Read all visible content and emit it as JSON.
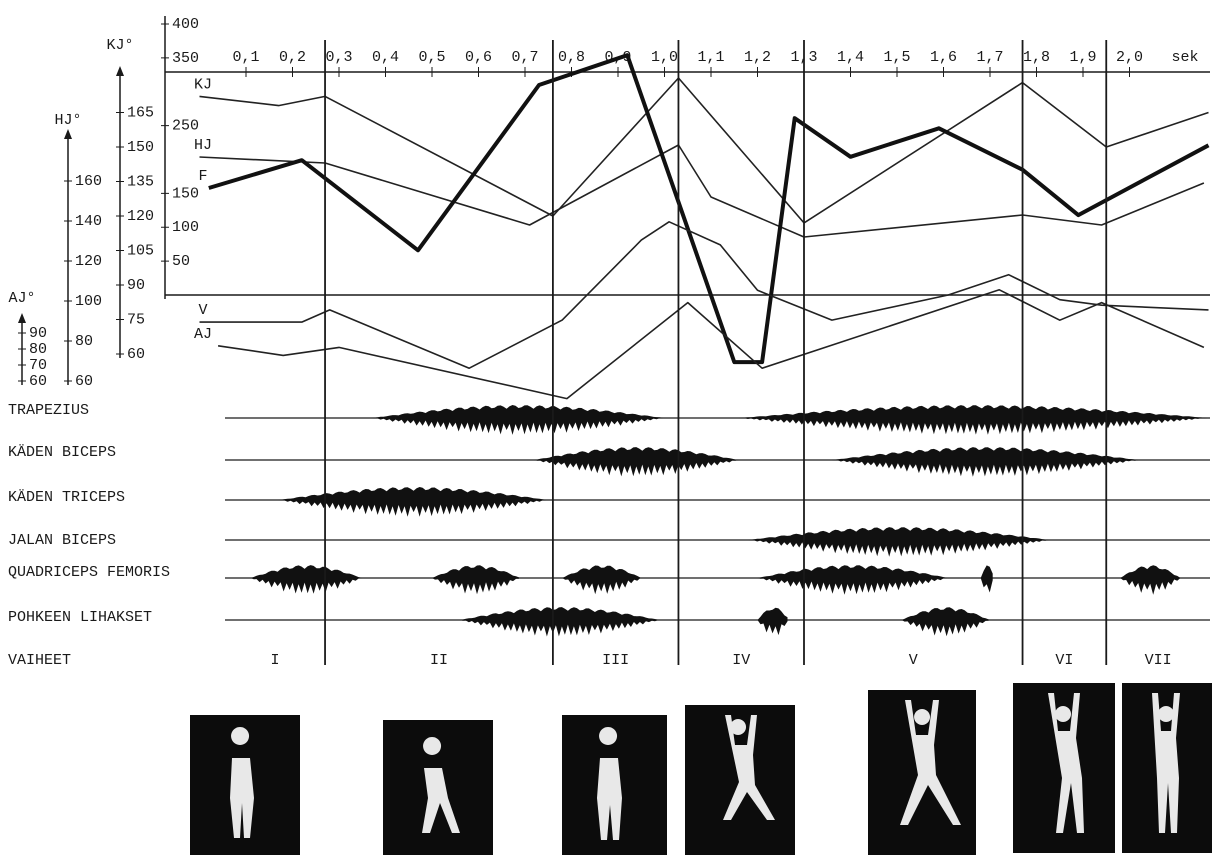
{
  "chart_data": {
    "type": "line",
    "x_unit": "sek",
    "xlim": [
      0,
      2.2
    ],
    "xticks": [
      {
        "value": 0.1,
        "label": "0,1"
      },
      {
        "value": 0.2,
        "label": "0,2"
      },
      {
        "value": 0.3,
        "label": "0,3"
      },
      {
        "value": 0.4,
        "label": "0,4"
      },
      {
        "value": 0.5,
        "label": "0,5"
      },
      {
        "value": 0.6,
        "label": "0,6"
      },
      {
        "value": 0.7,
        "label": "0,7"
      },
      {
        "value": 0.8,
        "label": "0,8"
      },
      {
        "value": 0.9,
        "label": "0,9"
      },
      {
        "value": 1.0,
        "label": "1,0"
      },
      {
        "value": 1.1,
        "label": "1,1"
      },
      {
        "value": 1.2,
        "label": "1,2"
      },
      {
        "value": 1.3,
        "label": "1,3"
      },
      {
        "value": 1.4,
        "label": "1,4"
      },
      {
        "value": 1.5,
        "label": "1,5"
      },
      {
        "value": 1.6,
        "label": "1,6"
      },
      {
        "value": 1.7,
        "label": "1,7"
      },
      {
        "value": 1.8,
        "label": "1,8"
      },
      {
        "value": 1.9,
        "label": "1,9"
      },
      {
        "value": 2.0,
        "label": "2,0"
      }
    ],
    "y_axes": [
      {
        "ylim": [
          0,
          400
        ],
        "yticks": [
          400,
          350,
          250,
          150,
          100,
          50
        ]
      },
      {
        "label": "KJ°",
        "ylim": [
          60,
          180
        ],
        "yticks": [
          165,
          150,
          135,
          120,
          105,
          90,
          75,
          60
        ]
      },
      {
        "label": "HJ°",
        "ylim": [
          60,
          180
        ],
        "yticks": [
          160,
          140,
          120,
          100,
          80,
          60
        ]
      },
      {
        "label": "AJ°",
        "ylim": [
          60,
          95
        ],
        "yticks": [
          90,
          80,
          70,
          60
        ]
      }
    ],
    "series": [
      {
        "name": "KJ",
        "axis": 1,
        "color": "#222222",
        "bold": false,
        "x": [
          0,
          0.17,
          0.27,
          0.76,
          1.03,
          1.3,
          1.77,
          1.95,
          2.17
        ],
        "values": [
          172,
          168,
          172,
          120,
          180,
          117,
          178,
          150,
          165
        ]
      },
      {
        "name": "HJ",
        "axis": 2,
        "color": "#222222",
        "bold": false,
        "x": [
          0,
          0.27,
          0.71,
          1.03,
          1.1,
          1.3,
          1.77,
          1.94,
          2.16
        ],
        "values": [
          172,
          169,
          138,
          178,
          152,
          132,
          143,
          138,
          159
        ]
      },
      {
        "name": "F",
        "axis": 0,
        "color": "#111111",
        "bold": true,
        "x": [
          0.02,
          0.22,
          0.47,
          0.73,
          0.92,
          1.15,
          1.21,
          1.28,
          1.4,
          1.59,
          1.77,
          1.89,
          2.17
        ],
        "values": [
          158,
          199,
          66,
          310,
          354,
          -99,
          -99,
          261,
          204,
          246,
          185,
          118,
          221
        ]
      },
      {
        "name": "V",
        "axis": 0,
        "color": "#222222",
        "bold": false,
        "x": [
          0,
          0.22,
          0.28,
          0.58,
          0.78,
          0.95,
          1.01,
          1.12,
          1.2,
          1.36,
          1.61,
          1.74,
          1.85,
          1.94,
          2.17
        ],
        "values": [
          -40,
          -40,
          -22,
          -108,
          -37,
          81,
          108,
          74,
          7,
          -37,
          0,
          30,
          -7,
          -15,
          -22
        ]
      },
      {
        "name": "AJ",
        "axis": 3,
        "color": "#222222",
        "bold": false,
        "x": [
          0.04,
          0.18,
          0.3,
          0.79,
          1.05,
          1.21,
          1.72,
          1.85,
          1.94,
          2.16
        ],
        "values": [
          82,
          76,
          81,
          49,
          109,
          68,
          117,
          98,
          109,
          81
        ]
      }
    ],
    "emg": [
      {
        "name": "TRAPEZIUS",
        "bursts": [
          [
            0.37,
            1.0
          ],
          [
            1.16,
            2.17
          ]
        ]
      },
      {
        "name": "KÄDEN BICEPS",
        "bursts": [
          [
            0.72,
            1.16
          ],
          [
            1.36,
            2.02
          ]
        ]
      },
      {
        "name": "KÄDEN TRICEPS",
        "bursts": [
          [
            0.17,
            0.75
          ]
        ]
      },
      {
        "name": "JALAN BICEPS",
        "bursts": [
          [
            1.18,
            1.83
          ]
        ]
      },
      {
        "name": "QUADRICEPS FEMORIS",
        "bursts": [
          [
            0.11,
            0.35
          ],
          [
            0.5,
            0.69
          ],
          [
            0.78,
            0.95
          ],
          [
            1.2,
            1.61
          ],
          [
            1.68,
            1.71
          ],
          [
            1.98,
            2.11
          ]
        ]
      },
      {
        "name": "POHKEEN LIHAKSET",
        "bursts": [
          [
            0.56,
            0.99
          ],
          [
            1.2,
            1.27
          ],
          [
            1.51,
            1.7
          ]
        ]
      }
    ],
    "phase_title": "VAIHEET",
    "phase_boundaries": [
      0.27,
      0.76,
      1.03,
      1.3,
      1.77,
      1.95
    ],
    "phases": [
      "I",
      "II",
      "III",
      "IV",
      "V",
      "VI",
      "VII"
    ]
  }
}
